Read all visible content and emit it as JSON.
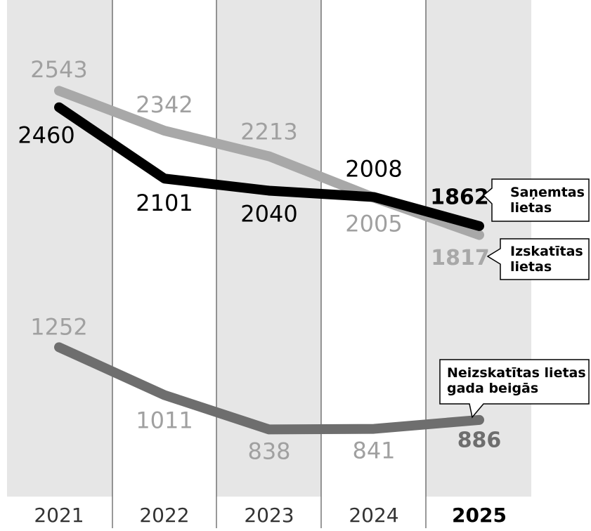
{
  "chart_data": {
    "type": "line",
    "categories": [
      "2021",
      "2022",
      "2023",
      "2024",
      "2025"
    ],
    "ylim": [
      500,
      3000
    ],
    "yticks": [
      500,
      1000,
      1500,
      2000,
      2500,
      3000
    ],
    "grid": true,
    "series": [
      {
        "name": "Neizskatītas lietas gada beigās",
        "color": "#6e6e6e",
        "values": [
          1252,
          1011,
          838,
          841,
          886
        ]
      },
      {
        "name": "Izskatītas lietas",
        "color": "#a8a8a8",
        "values": [
          2543,
          2342,
          2213,
          2005,
          1817
        ]
      },
      {
        "name": "Saņemtas lietas",
        "color": "#000000",
        "values": [
          2460,
          2101,
          2040,
          2008,
          1862
        ]
      }
    ]
  }
}
